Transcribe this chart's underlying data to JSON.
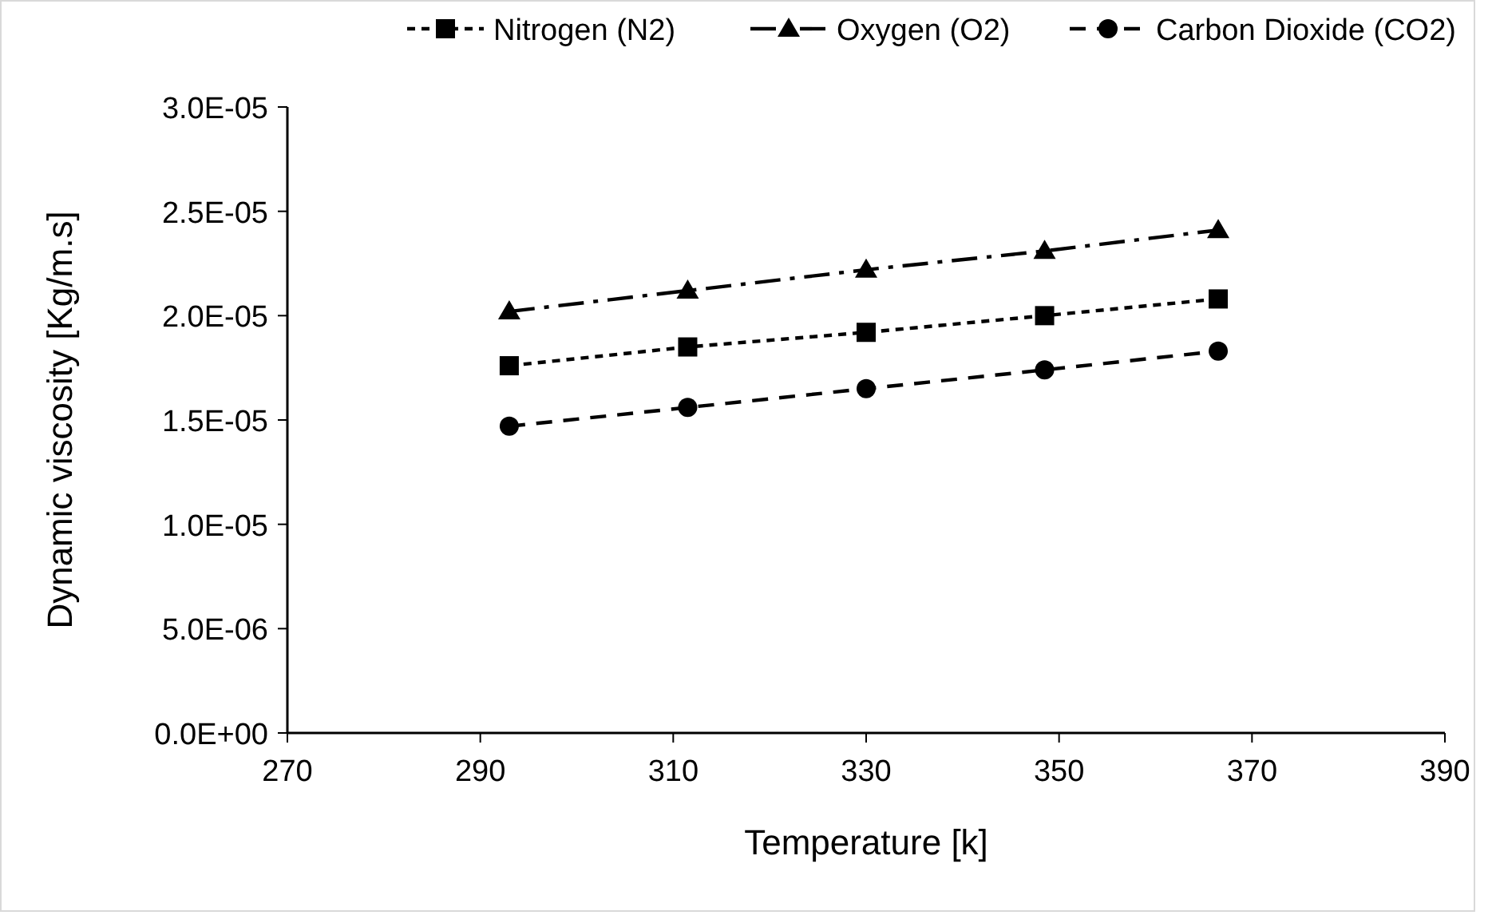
{
  "chart_data": {
    "type": "line",
    "xlabel": "Temperature  [k]",
    "ylabel": "Dynamic viscosity [Kg/m.s]",
    "x": [
      293,
      311.5,
      330,
      348.5,
      366.5
    ],
    "series": [
      {
        "name": "Nitrogen (N2)",
        "color": "#000000",
        "values": [
          1.76e-05,
          1.85e-05,
          1.92e-05,
          2e-05,
          2.08e-05
        ],
        "marker": "square",
        "line_style": "dotted"
      },
      {
        "name": "Oxygen (O2)",
        "color": "#000000",
        "values": [
          2.02e-05,
          2.12e-05,
          2.22e-05,
          2.31e-05,
          2.41e-05
        ],
        "marker": "triangle",
        "line_style": "dashdot"
      },
      {
        "name": "Carbon Dioxide (CO2)",
        "color": "#000000",
        "values": [
          1.47e-05,
          1.56e-05,
          1.65e-05,
          1.74e-05,
          1.83e-05
        ],
        "marker": "circle",
        "line_style": "dashed"
      }
    ],
    "xlim": [
      270,
      390
    ],
    "xticks": [
      270,
      290,
      310,
      330,
      350,
      370,
      390
    ],
    "ylim": [
      0,
      3e-05
    ],
    "yticks": [
      {
        "value": 0,
        "label": "0.0E+00"
      },
      {
        "value": 5e-06,
        "label": "5.0E-06"
      },
      {
        "value": 1e-05,
        "label": "1.0E-05"
      },
      {
        "value": 1.5e-05,
        "label": "1.5E-05"
      },
      {
        "value": 2e-05,
        "label": "2.0E-05"
      },
      {
        "value": 2.5e-05,
        "label": "2.5E-05"
      },
      {
        "value": 3e-05,
        "label": "3.0E-05"
      }
    ],
    "grid": false,
    "legend": "top"
  }
}
